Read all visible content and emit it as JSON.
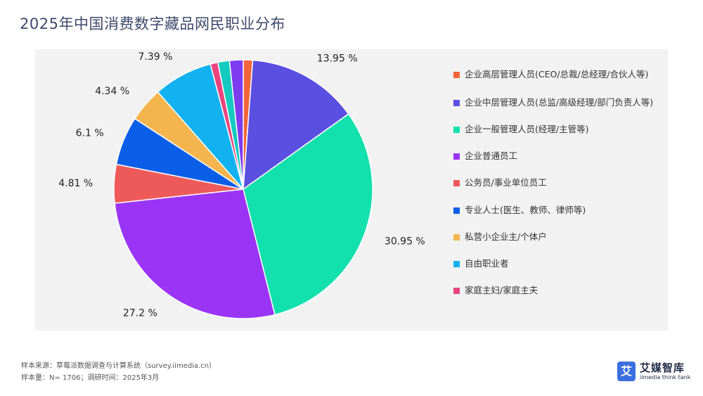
{
  "title": "2025年中国消费数字藏品网民职业分布",
  "chart_data": {
    "type": "pie",
    "title": "",
    "slices": [
      {
        "label": "企业高层管理人员(CEO/总裁/总经理/合伙人等)",
        "value": 1.17,
        "display": "1.17 %",
        "color": "#f2653a"
      },
      {
        "label": "企业中层管理人员(总监/高级经理/部门负责人等)",
        "value": 13.95,
        "display": "13.95 %",
        "color": "#5a4fe0"
      },
      {
        "label": "企业一般管理人员(经理/主管等)",
        "value": 30.95,
        "display": "30.95 %",
        "color": "#12e0ad"
      },
      {
        "label": "企业普通员工",
        "value": 27.2,
        "display": "27.2 %",
        "color": "#9b35f5"
      },
      {
        "label": "公务员/事业单位员工",
        "value": 4.81,
        "display": "4.81 %",
        "color": "#ee5a5a"
      },
      {
        "label": "专业人士(医生、教师、律师等)",
        "value": 6.1,
        "display": "6.1 %",
        "color": "#0b5ee8"
      },
      {
        "label": "私营小企业主/个体户",
        "value": 4.34,
        "display": "4.34 %",
        "color": "#f4b54f"
      },
      {
        "label": "自由职业者",
        "value": 7.39,
        "display": "7.39 %",
        "color": "#12b2f0"
      },
      {
        "label": "家庭主妇/家庭主夫",
        "value": 0.94,
        "display": "0.94 %",
        "color": "#e8457f"
      },
      {
        "label": "",
        "value": 1.45,
        "display": "1.45 %",
        "color": "#14c9c0"
      },
      {
        "label": "",
        "value": 1.7,
        "display": "1.7 %",
        "color": "#7c3cf0"
      }
    ],
    "legend_position": "right"
  },
  "footer": {
    "source": "样本来源：草莓派数据调查与计算系统（survey.iimedia.cn）",
    "sample": "样本量：N= 1706；调研时间：2025年3月"
  },
  "brand": {
    "logo_char": "艾",
    "name": "艾媒智库",
    "sub": "iimedia think tank"
  }
}
